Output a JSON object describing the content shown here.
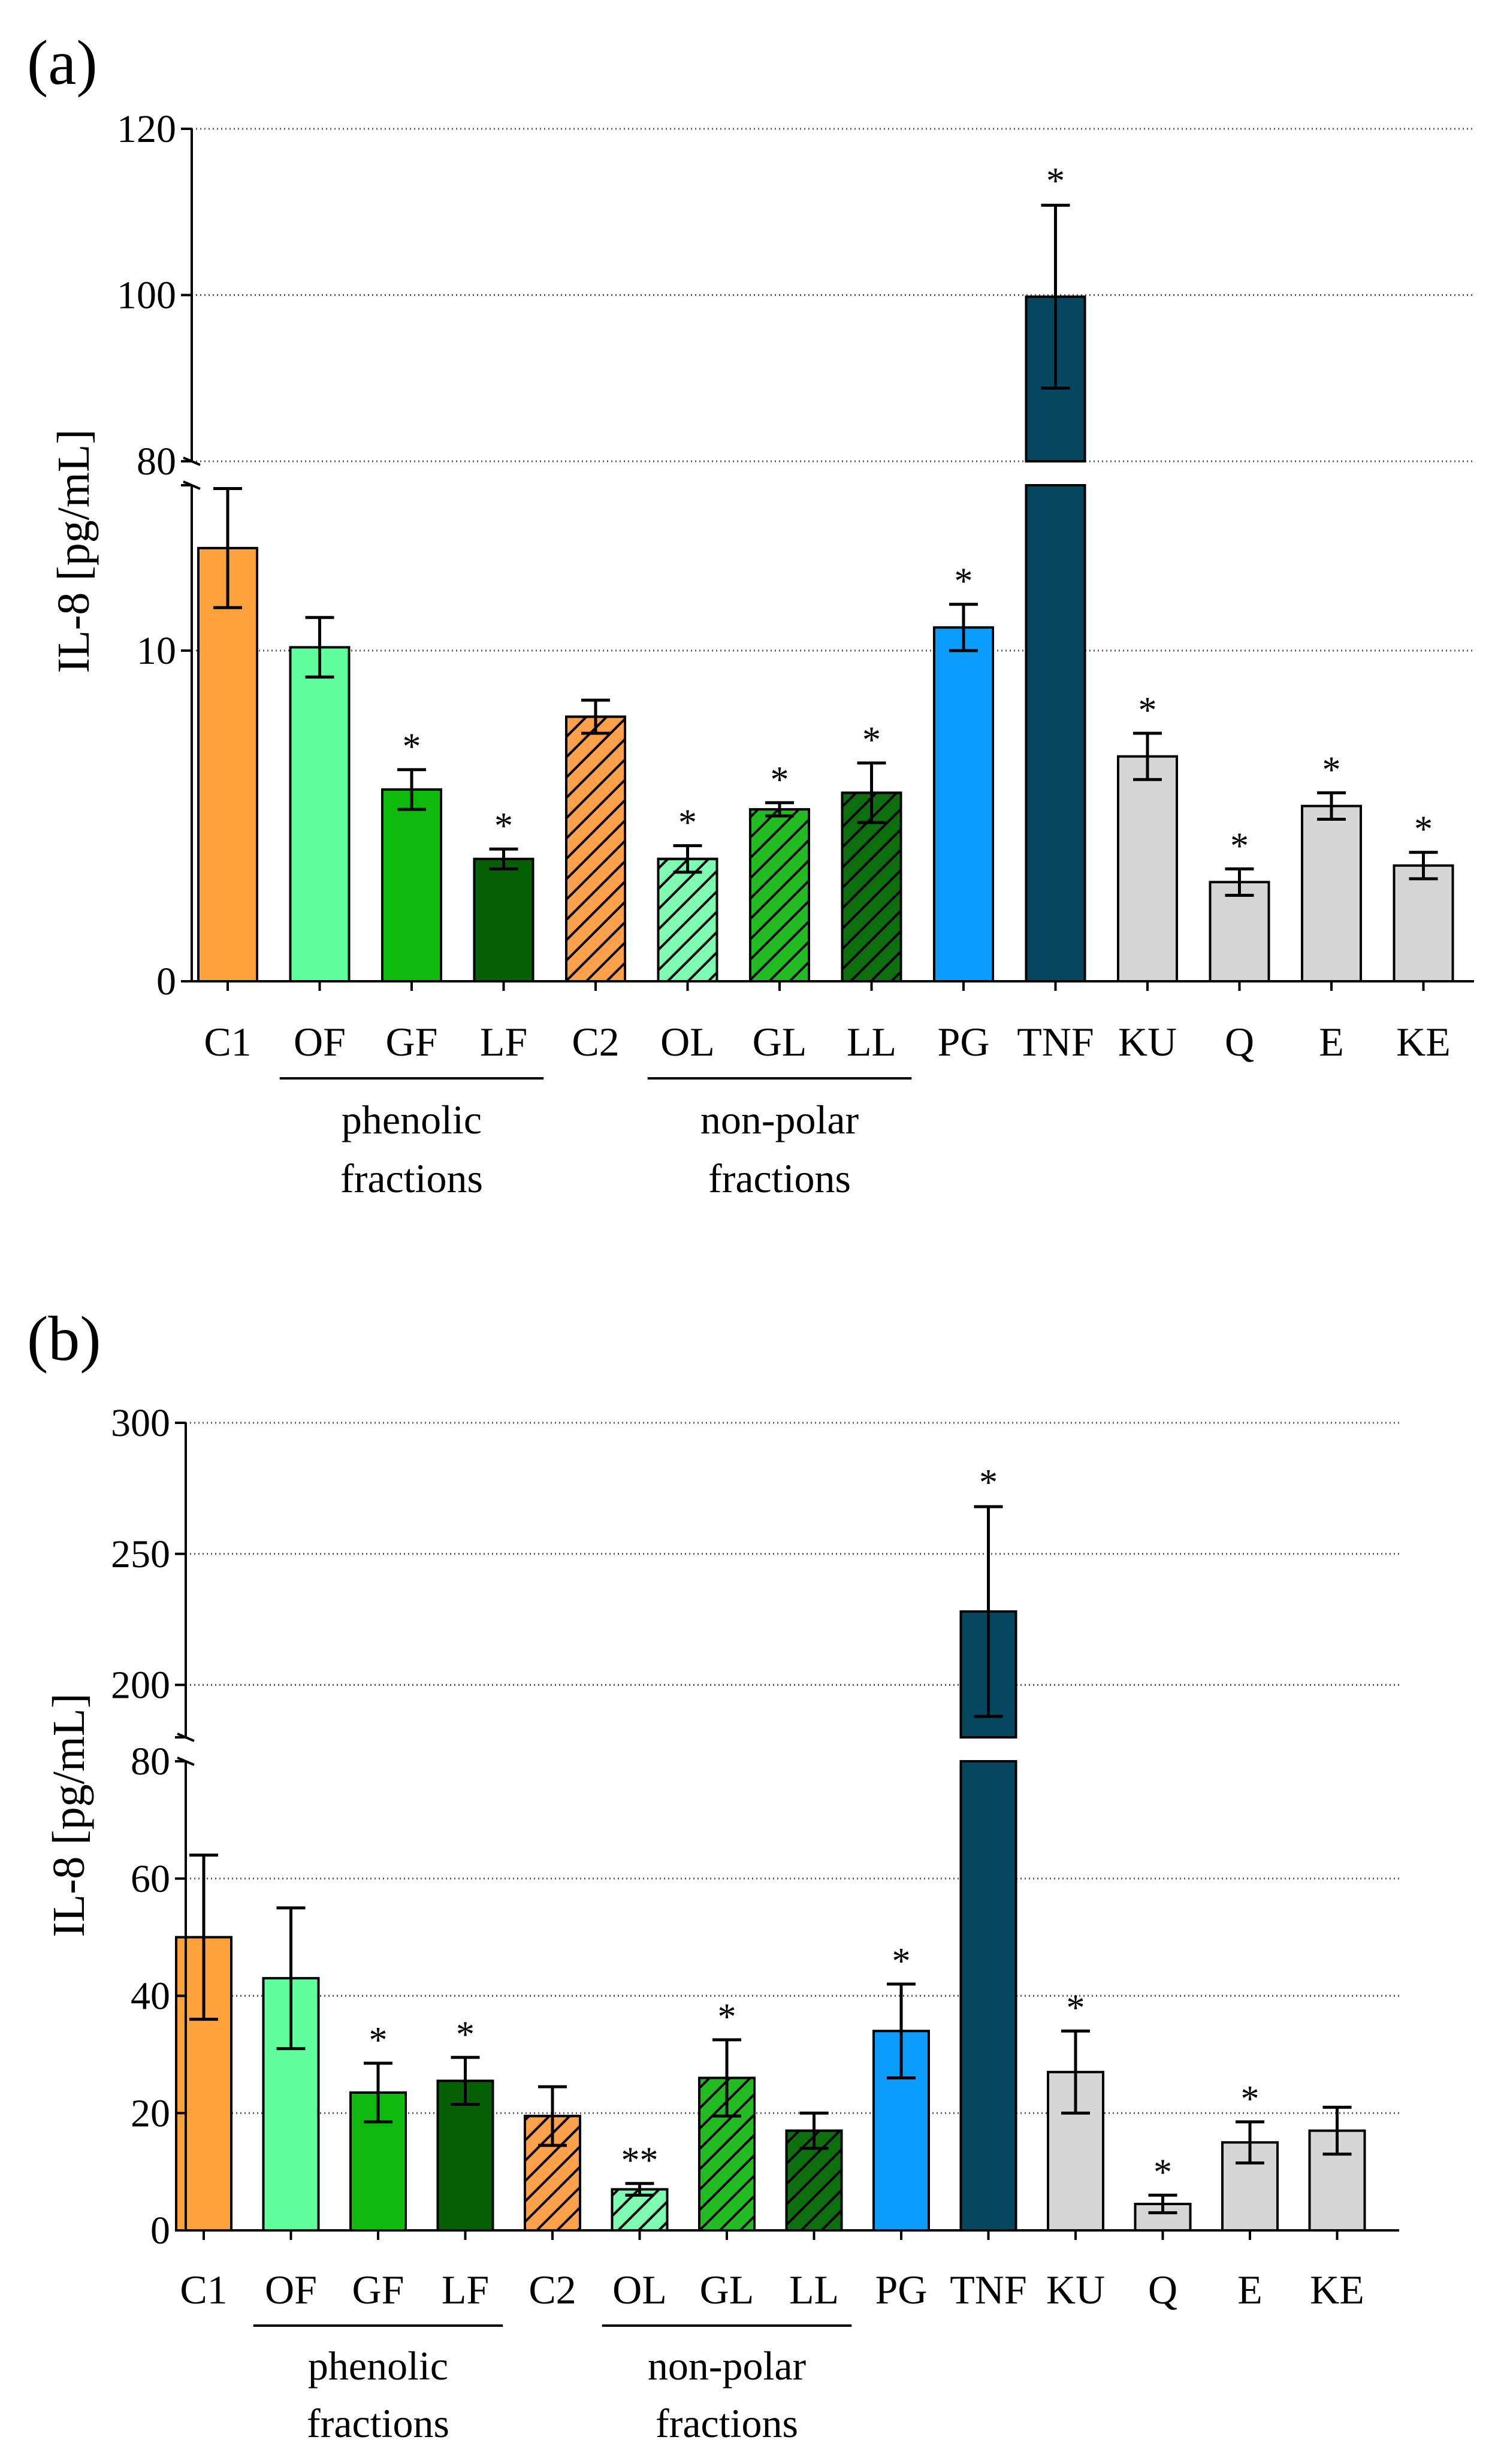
{
  "chart_data": [
    {
      "panel_label": "(a)",
      "type": "bar",
      "title": "",
      "ylabel": "IL-8 [pg/mL]",
      "xlabel": "",
      "axis_break": {
        "lower_range": [
          0,
          15
        ],
        "upper_range": [
          80,
          120
        ]
      },
      "lower_ticks": [
        "0",
        "10",
        "80"
      ],
      "upper_ticks": [
        "80",
        "100",
        "120"
      ],
      "grid": "dotted horizontal at 10, 80, 100, 120",
      "categories": [
        "C1",
        "OF",
        "GF",
        "LF",
        "C2",
        "OL",
        "GL",
        "LL",
        "PG",
        "TNF",
        "KU",
        "Q",
        "E",
        "KE"
      ],
      "values": [
        13.1,
        10.1,
        5.8,
        3.7,
        8.0,
        3.7,
        5.2,
        5.7,
        10.7,
        99.8,
        6.8,
        3.0,
        5.3,
        3.5
      ],
      "errors": [
        1.8,
        0.9,
        0.6,
        0.3,
        0.5,
        0.4,
        0.2,
        0.9,
        0.7,
        11.0,
        0.7,
        0.4,
        0.4,
        0.4
      ],
      "significance": [
        "",
        "",
        "*",
        "*",
        "",
        "*",
        "*",
        "*",
        "*",
        "*",
        "*",
        "*",
        "*",
        "*"
      ],
      "fill_colors": [
        "#ffa23c",
        "#5eff9c",
        "#0cbb0c",
        "#046004",
        "#ffa04a",
        "#7dfbb0",
        "#22bb22",
        "#0d6e0d",
        "#0a9cff",
        "#05475f",
        "#d6d6d6",
        "#d6d6d6",
        "#d6d6d6",
        "#d6d6d6"
      ],
      "patterns": [
        "solid",
        "solid",
        "solid",
        "solid",
        "hatch",
        "hatch",
        "hatch",
        "hatch",
        "solid",
        "solid",
        "solid",
        "solid",
        "solid",
        "solid"
      ],
      "groups": [
        {
          "label_line1": "phenolic",
          "label_line2": "fractions",
          "from": "OF",
          "to": "LF"
        },
        {
          "label_line1": "non-polar",
          "label_line2": "fractions",
          "from": "OL",
          "to": "LL"
        }
      ]
    },
    {
      "panel_label": "(b)",
      "type": "bar",
      "title": "",
      "ylabel": "IL-8 [pg/mL]",
      "xlabel": "",
      "axis_break": {
        "lower_range": [
          0,
          80
        ],
        "upper_range": [
          180,
          300
        ]
      },
      "lower_ticks": [
        "0",
        "20",
        "40",
        "60",
        "80"
      ],
      "upper_ticks": [
        "200",
        "250",
        "300"
      ],
      "grid": "dotted horizontal at 20, 40, 60, 200, 250, 300",
      "categories": [
        "C1",
        "OF",
        "GF",
        "LF",
        "C2",
        "OL",
        "GL",
        "LL",
        "PG",
        "TNF",
        "KU",
        "Q",
        "E",
        "KE"
      ],
      "values": [
        50,
        43,
        23.5,
        25.5,
        19.5,
        7,
        26,
        17,
        34,
        228,
        27,
        4.5,
        15,
        17
      ],
      "errors": [
        14,
        12,
        5,
        4,
        5,
        1,
        6.5,
        3,
        8,
        40,
        7,
        1.5,
        3.5,
        4
      ],
      "significance": [
        "",
        "",
        "*",
        "*",
        "",
        "**",
        "*",
        "",
        "*",
        "*",
        "*",
        "*",
        "*",
        ""
      ],
      "fill_colors": [
        "#ffa23c",
        "#5eff9c",
        "#0cbb0c",
        "#046004",
        "#ffa04a",
        "#7dfbb0",
        "#22bb22",
        "#0d6e0d",
        "#0a9cff",
        "#05475f",
        "#d6d6d6",
        "#d6d6d6",
        "#d6d6d6",
        "#d6d6d6"
      ],
      "patterns": [
        "solid",
        "solid",
        "solid",
        "solid",
        "hatch",
        "hatch",
        "hatch",
        "hatch",
        "solid",
        "solid",
        "solid",
        "solid",
        "solid",
        "solid"
      ],
      "groups": [
        {
          "label_line1": "phenolic",
          "label_line2": "fractions",
          "from": "OF",
          "to": "LF"
        },
        {
          "label_line1": "non-polar",
          "label_line2": "fractions",
          "from": "OL",
          "to": "LL"
        }
      ]
    }
  ]
}
